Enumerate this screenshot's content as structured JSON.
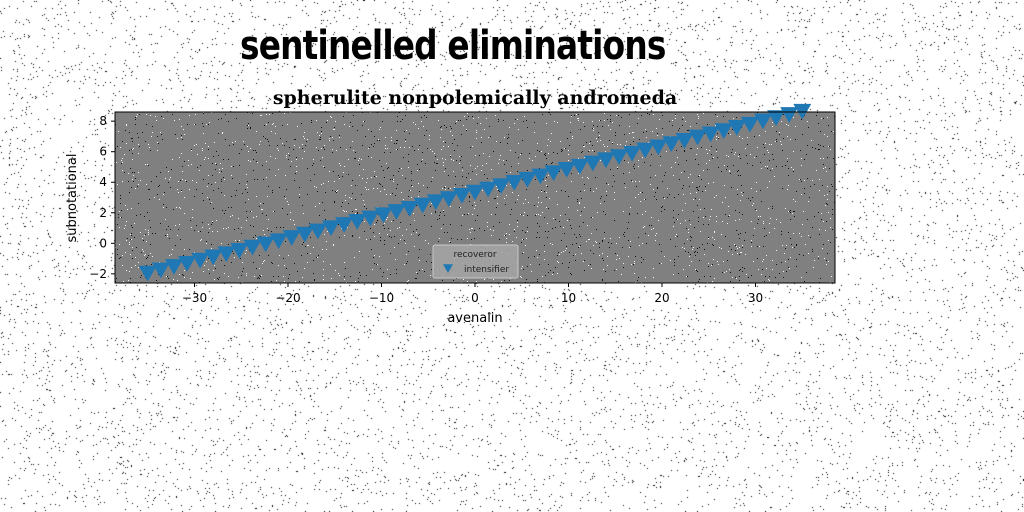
{
  "figure": {
    "suptitle": "sentinelled eliminations",
    "background_color": "#ffffff",
    "noise_color": "#000000"
  },
  "chart_data": {
    "type": "scatter",
    "title": "spherulite nonpolemically andromeda",
    "xlabel": "avenalin",
    "ylabel": "subnotational",
    "xlim": [
      -38.5,
      38.5
    ],
    "ylim": [
      -2.6,
      8.6
    ],
    "xticks": [
      -30,
      -20,
      -10,
      0,
      10,
      20,
      30
    ],
    "yticks": [
      -2,
      0,
      2,
      4,
      6,
      8
    ],
    "grid": false,
    "plot_background": "#808080",
    "marker": "triangle-down",
    "legend": {
      "title": "recoveror",
      "location": "lower center",
      "entries": [
        "intensifier"
      ]
    },
    "series": [
      {
        "name": "intensifier",
        "color": "#1f77b4",
        "x": [
          -35.0,
          -33.6,
          -32.2,
          -30.8,
          -29.4,
          -28.0,
          -26.6,
          -25.2,
          -23.8,
          -22.4,
          -21.0,
          -19.6,
          -18.2,
          -16.8,
          -15.4,
          -14.0,
          -12.6,
          -11.2,
          -9.8,
          -8.4,
          -7.0,
          -5.6,
          -4.2,
          -2.8,
          -1.4,
          0.0,
          1.4,
          2.8,
          4.2,
          5.6,
          7.0,
          8.4,
          9.8,
          11.2,
          12.6,
          14.0,
          15.4,
          16.8,
          18.2,
          19.6,
          21.0,
          22.4,
          23.8,
          25.2,
          26.6,
          28.0,
          29.4,
          30.8,
          32.2,
          33.6,
          35.0
        ],
        "y": [
          -1.91,
          -1.7,
          -1.48,
          -1.27,
          -1.06,
          -0.85,
          -0.64,
          -0.42,
          -0.21,
          0.0,
          0.21,
          0.42,
          0.64,
          0.85,
          1.06,
          1.27,
          1.48,
          1.7,
          1.91,
          2.12,
          2.33,
          2.54,
          2.76,
          2.97,
          3.18,
          3.39,
          3.6,
          3.82,
          4.03,
          4.24,
          4.45,
          4.66,
          4.88,
          5.09,
          5.3,
          5.51,
          5.72,
          5.94,
          6.15,
          6.36,
          6.57,
          6.78,
          7.0,
          7.21,
          7.42,
          7.63,
          7.84,
          8.06,
          8.27,
          8.48,
          8.69
        ]
      }
    ]
  }
}
